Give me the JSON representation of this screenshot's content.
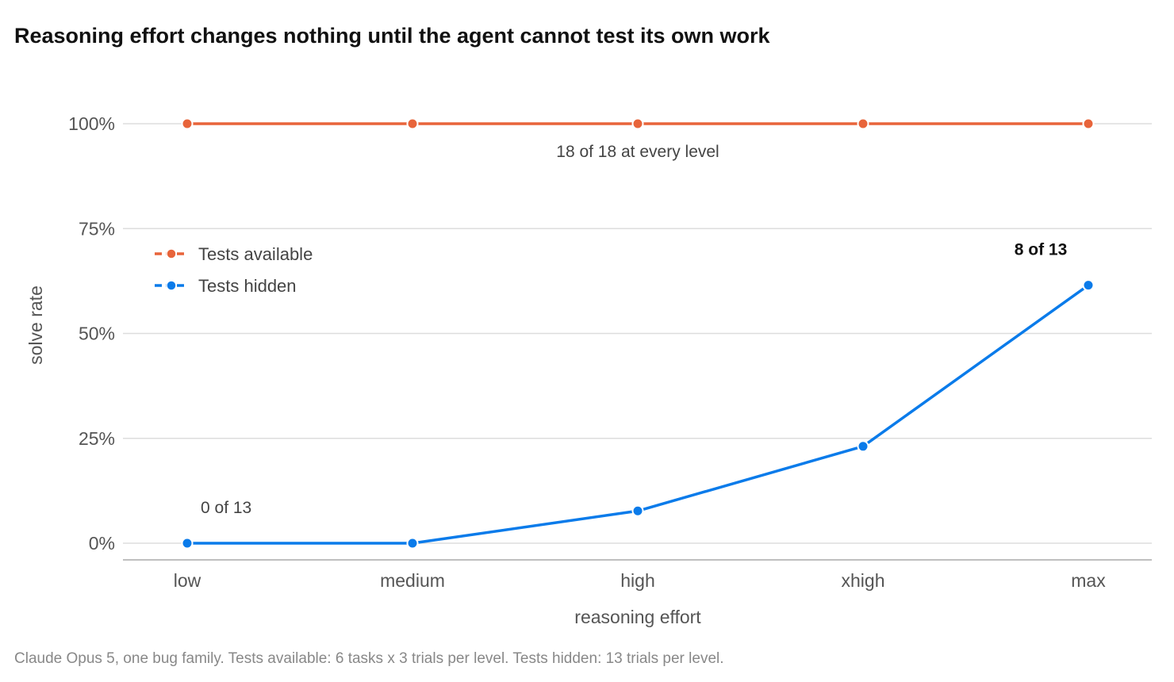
{
  "chart_data": {
    "type": "line",
    "title": "Reasoning effort changes nothing until the agent cannot test its own work",
    "xlabel": "reasoning effort",
    "ylabel": "solve rate",
    "categories": [
      "low",
      "medium",
      "high",
      "xhigh",
      "max"
    ],
    "ylim": [
      0,
      1
    ],
    "yticks": [
      {
        "value": 0,
        "label": "0%"
      },
      {
        "value": 0.25,
        "label": "25%"
      },
      {
        "value": 0.5,
        "label": "50%"
      },
      {
        "value": 0.75,
        "label": "75%"
      },
      {
        "value": 1,
        "label": "100%"
      }
    ],
    "grid": true,
    "legend_position": "upper-left",
    "series": [
      {
        "name": "Tests available",
        "color": "#E8643A",
        "values": [
          1.0,
          1.0,
          1.0,
          1.0,
          1.0
        ]
      },
      {
        "name": "Tests hidden",
        "color": "#0A7BEA",
        "values": [
          0.0,
          0.0,
          0.077,
          0.231,
          0.615
        ]
      }
    ],
    "annotations": [
      {
        "text": "18 of 18 at every level",
        "category": "high",
        "value": 1.0,
        "bold": false
      },
      {
        "text": "0 of 13",
        "category": "low",
        "value": 0.0,
        "bold": false
      },
      {
        "text": "8 of 13",
        "category": "max",
        "value": 0.615,
        "bold": true
      }
    ],
    "caption": "Claude Opus 5, one bug family. Tests available: 6 tasks x 3 trials per level. Tests hidden: 13 trials per level."
  }
}
